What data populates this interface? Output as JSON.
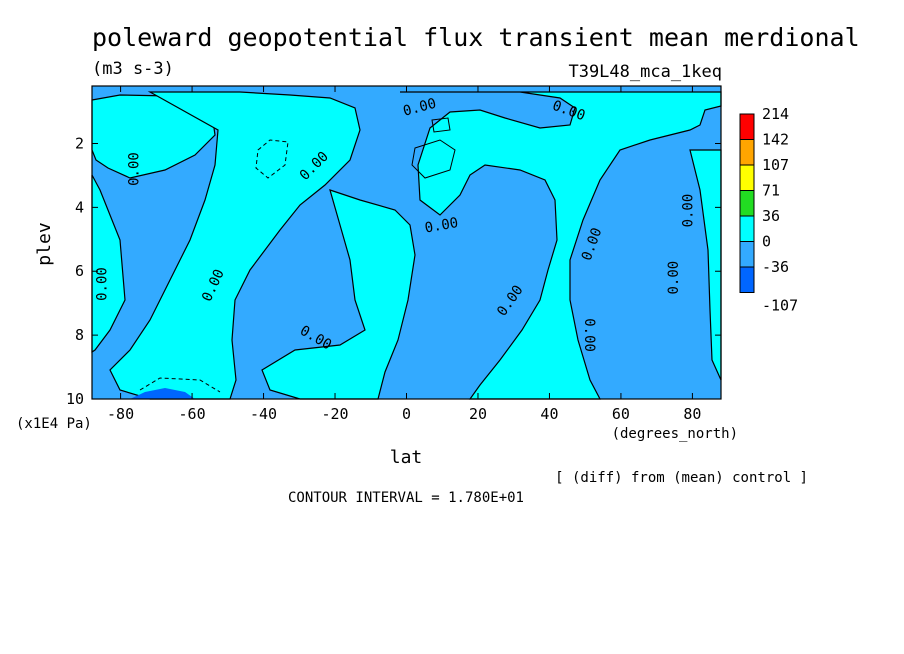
{
  "chart_data": {
    "type": "heatmap",
    "title": "poleward geopotential flux transient mean merdional",
    "units": "(m3 s-3)",
    "run_label": "T39L48_mca_1keq",
    "xlabel": "lat",
    "xunits": "(degrees_north)",
    "ylabel": "plev",
    "yunits": "(x1E4 Pa)",
    "xlim": [
      -88,
      88
    ],
    "ylim": [
      10,
      0.2
    ],
    "x_ticks": [
      -80,
      -60,
      -40,
      -20,
      0,
      20,
      40,
      60,
      80
    ],
    "y_ticks": [
      2,
      4,
      6,
      8,
      10
    ],
    "contour_labels": [
      "0.00"
    ],
    "contour_interval_text": "CONTOUR INTERVAL = 1.780E+01",
    "diff_note": "[ (diff) from (mean) control ]",
    "colorbar": {
      "labels": [
        "214",
        "142",
        "107",
        "71",
        "36",
        "0",
        "-36",
        "-107"
      ],
      "colors": [
        "#ff0000",
        "#ffa500",
        "#ffff00",
        "#22dd22",
        "#00ffff",
        "#33aaff",
        "#0066ff"
      ]
    }
  }
}
